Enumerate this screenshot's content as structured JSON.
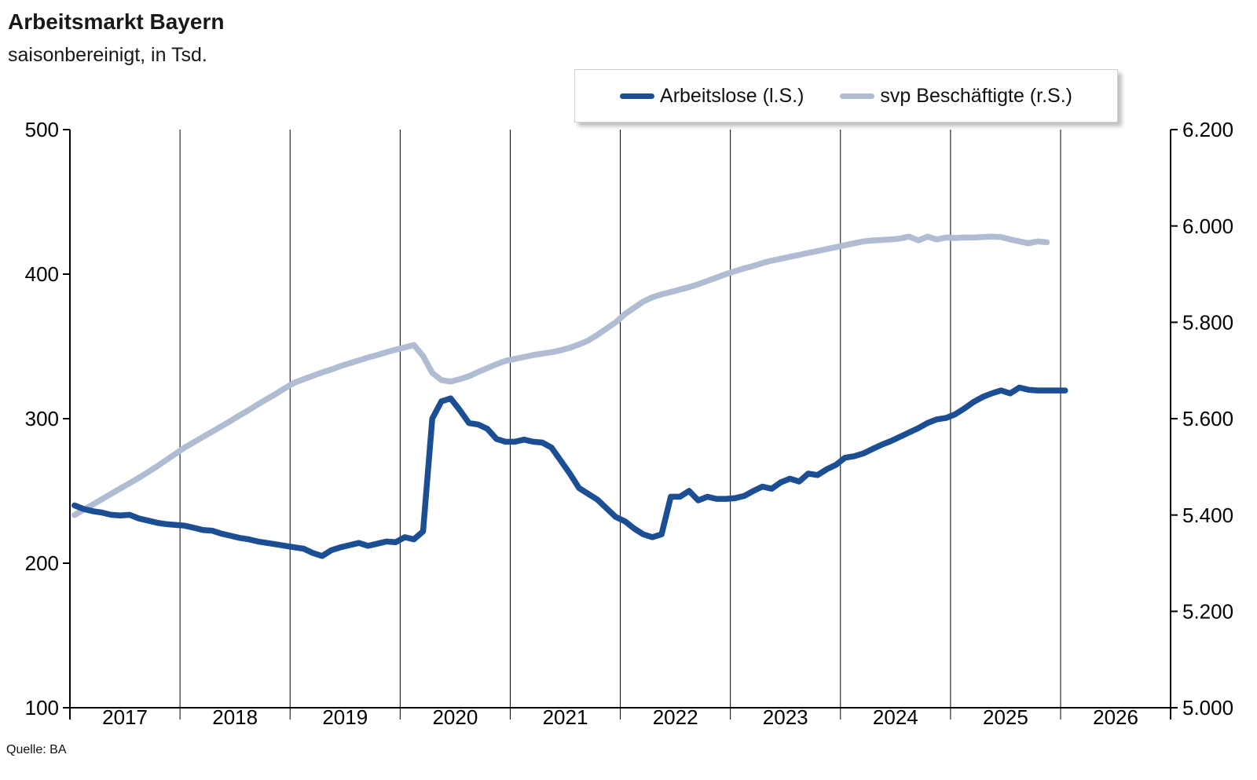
{
  "header": {
    "title": "Arbeitsmarkt Bayern",
    "subtitle": "saisonbereinigt, in Tsd."
  },
  "source": "Quelle: BA",
  "legend": {
    "items": [
      {
        "label": "Arbeitslose (l.S.)",
        "color": "#1C4E94"
      },
      {
        "label": "svp Beschäftigte (r.S.)",
        "color": "#AFBCD2"
      }
    ]
  },
  "chart_data": {
    "type": "line",
    "title": "Arbeitsmarkt Bayern",
    "subtitle": "saisonbereinigt, in Tsd.",
    "grid": "vertical-yearly",
    "legend_position": "top",
    "x_start": "2017-01",
    "x_years": [
      "2017",
      "2018",
      "2019",
      "2020",
      "2021",
      "2022",
      "2023",
      "2024",
      "2025",
      "2026"
    ],
    "left_axis": {
      "range": [
        100,
        500
      ],
      "ticks": [
        100,
        200,
        300,
        400,
        500
      ],
      "tick_labels": [
        "100",
        "200",
        "300",
        "400",
        "500"
      ]
    },
    "right_axis": {
      "range": [
        5000,
        6200
      ],
      "ticks": [
        5000,
        5200,
        5400,
        5600,
        5800,
        6000,
        6200
      ],
      "tick_labels": [
        "5.000",
        "5.200",
        "5.400",
        "5.600",
        "5.800",
        "6.000",
        "6.200"
      ]
    },
    "series": [
      {
        "name": "Arbeitslose (l.S.)",
        "axis": "left",
        "color": "#1C4E94",
        "start": "2017-01",
        "values": [
          240,
          237.5,
          236,
          235,
          233.5,
          233,
          233.5,
          231,
          229.5,
          228,
          227,
          226.5,
          226,
          224.5,
          223,
          222.5,
          220.5,
          219,
          217.5,
          216.5,
          215,
          214,
          213,
          212,
          211,
          210,
          207,
          205,
          209,
          211,
          212.5,
          214,
          212,
          213.5,
          215,
          214.5,
          218,
          216.5,
          222,
          300,
          312,
          314,
          306,
          297,
          296,
          293,
          286,
          284,
          284,
          285.5,
          284,
          283.5,
          280,
          271,
          262,
          252,
          248,
          244,
          238,
          232,
          229,
          224,
          220,
          218,
          220,
          246,
          246,
          250,
          243.5,
          246,
          244.5,
          244.5,
          245,
          246.5,
          250,
          253,
          251.5,
          256,
          258.5,
          256.5,
          262,
          261,
          265,
          268,
          273,
          274,
          276,
          279,
          282,
          284.5,
          287.5,
          290.5,
          293.5,
          297,
          299.5,
          300.5,
          303,
          307,
          311.5,
          315,
          317.5,
          319.5,
          317.5,
          321.5,
          320,
          319.5,
          319.5,
          319.5,
          319.5
        ]
      },
      {
        "name": "svp Beschäftigte (r.S.)",
        "axis": "right",
        "color": "#AFBCD2",
        "start": "2017-01",
        "values": [
          5400,
          5411,
          5422,
          5433,
          5444,
          5455,
          5466,
          5477,
          5489,
          5501,
          5514,
          5527,
          5540,
          5551,
          5562,
          5573,
          5584,
          5595,
          5607,
          5618,
          5630,
          5641,
          5652,
          5664,
          5675,
          5682,
          5689,
          5696,
          5702,
          5709,
          5715,
          5721,
          5727,
          5732,
          5738,
          5743,
          5748,
          5753,
          5730,
          5695,
          5680,
          5677,
          5682,
          5688,
          5697,
          5705,
          5713,
          5720,
          5724,
          5728,
          5732,
          5735,
          5738,
          5742,
          5747,
          5754,
          5762,
          5774,
          5787,
          5800,
          5817,
          5830,
          5843,
          5852,
          5858,
          5863,
          5868,
          5873,
          5879,
          5886,
          5893,
          5900,
          5906,
          5912,
          5917,
          5923,
          5928,
          5932,
          5936,
          5940,
          5944,
          5948,
          5952,
          5956,
          5960,
          5964,
          5968,
          5970,
          5971,
          5972,
          5974,
          5978,
          5970,
          5978,
          5972,
          5976,
          5975,
          5976,
          5976,
          5977,
          5978,
          5977,
          5972,
          5968,
          5964,
          5968,
          5966
        ]
      }
    ]
  }
}
